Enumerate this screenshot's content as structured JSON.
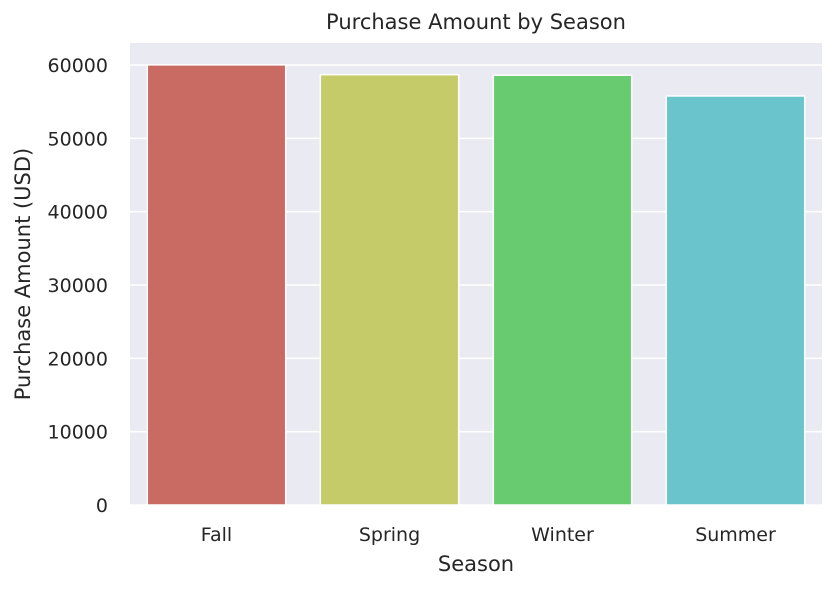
{
  "chart_data": {
    "type": "bar",
    "title": "Purchase Amount by Season",
    "xlabel": "Season",
    "ylabel": "Purchase Amount (USD)",
    "categories": [
      "Fall",
      "Spring",
      "Winter",
      "Summer"
    ],
    "values": [
      60018,
      58679,
      58607,
      55777
    ],
    "colors": [
      "#c96b62",
      "#c6cb69",
      "#69cb70",
      "#69c5cb"
    ],
    "ylim": [
      0,
      63000
    ],
    "yticks": [
      0,
      10000,
      20000,
      30000,
      40000,
      50000,
      60000
    ],
    "ytick_labels": [
      "0",
      "10000",
      "20000",
      "30000",
      "40000",
      "50000",
      "60000"
    ],
    "grid": true,
    "background": "#eaeaf2",
    "legend": "none"
  }
}
